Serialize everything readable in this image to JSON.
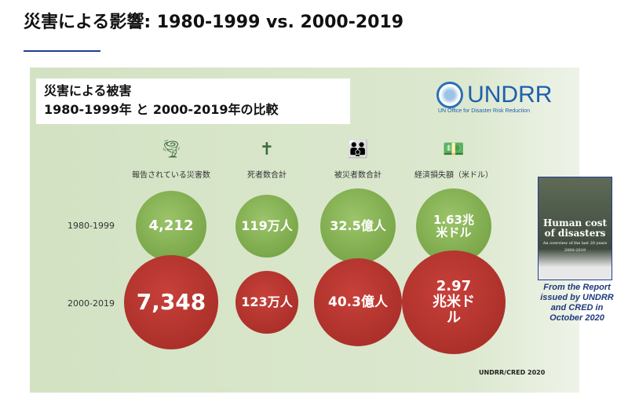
{
  "page_title": "災害による影響: 1980-1999 vs. 2000-2019",
  "panel": {
    "heading_line1": "災害による被害",
    "heading_line2": "1980-1999年 と 2000-2019年の比較",
    "logo_name": "UNDRR",
    "logo_sub": "UN Office for Disaster Risk Reduction",
    "columns": [
      {
        "icon": "disaster-icon",
        "glyph": "🌪",
        "label": "報告されている災害数"
      },
      {
        "icon": "death-icon",
        "glyph": "✝",
        "label": "死者数合計"
      },
      {
        "icon": "people-icon",
        "glyph": "👪",
        "label": "被災者数合計"
      },
      {
        "icon": "money-icon",
        "glyph": "💵",
        "label": "経済損失額（米ドル）"
      }
    ],
    "rows": [
      {
        "label": "1980-1999",
        "values": [
          "4,212",
          "119万人",
          "32.5億人",
          "1.63兆米ドル"
        ],
        "color": "#7aa84a"
      },
      {
        "label": "2000-2019",
        "values": [
          "7,348",
          "123万人",
          "40.3億人",
          "2.97兆米ドル"
        ],
        "color": "#b3342e"
      }
    ],
    "source": "UNDRR/CRED 2020"
  },
  "report": {
    "cover_title": "Human cost of disasters",
    "cover_sub": "An overview of the last 20 years",
    "cover_years": "2000-2019",
    "caption": "From the Report issued by UNDRR and CRED in October 2020"
  }
}
